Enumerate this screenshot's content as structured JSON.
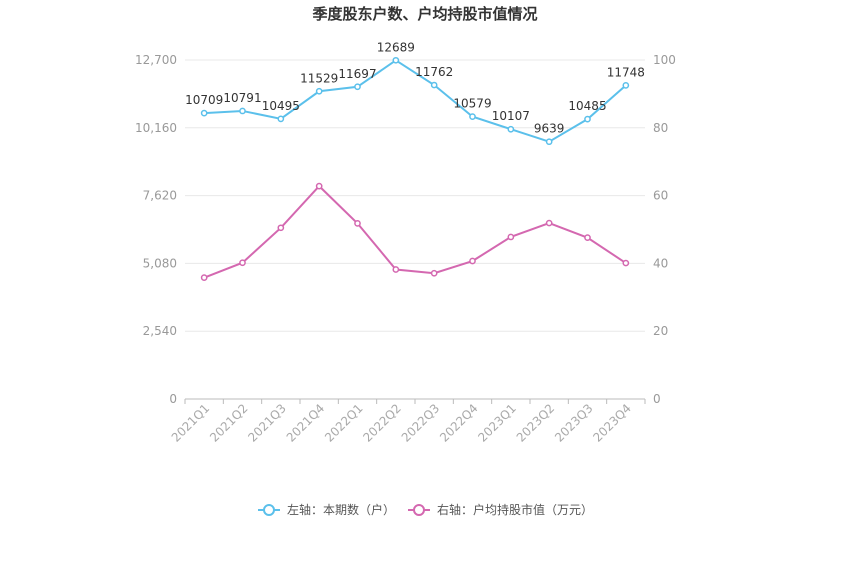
{
  "chart_data": {
    "type": "line",
    "title": "季度股东户数、户均持股市值情况",
    "categories": [
      "2021Q1",
      "2021Q2",
      "2021Q3",
      "2021Q4",
      "2022Q1",
      "2022Q2",
      "2022Q3",
      "2022Q4",
      "2023Q1",
      "2023Q2",
      "2023Q3",
      "2023Q4"
    ],
    "left_axis": {
      "ticks": [
        "0",
        "2,540",
        "5,080",
        "7,620",
        "10,160",
        "12,700"
      ],
      "ylim": [
        0,
        12700
      ]
    },
    "right_axis": {
      "ticks": [
        "0",
        "20",
        "40",
        "60",
        "80",
        "100"
      ],
      "ylim": [
        0,
        100
      ]
    },
    "grid": true,
    "legend_position": "bottom",
    "series": [
      {
        "name": "左轴：本期数（户）",
        "axis": "left",
        "color": "#5bc0eb",
        "values": [
          10709,
          10791,
          10495,
          11529,
          11697,
          12689,
          11762,
          10579,
          10107,
          9639,
          10485,
          11748
        ],
        "labels": [
          "10709",
          "10791",
          "10495",
          "11529",
          "11697",
          "12689",
          "11762",
          "10579",
          "10107",
          "9639",
          "10485",
          "11748"
        ]
      },
      {
        "name": "右轴：户均持股市值（万元）",
        "axis": "right",
        "color": "#d468b0",
        "values": [
          35.8,
          40.2,
          50.5,
          62.8,
          51.8,
          38.2,
          37.1,
          40.7,
          47.8,
          51.9,
          47.6,
          40.1
        ]
      }
    ]
  }
}
